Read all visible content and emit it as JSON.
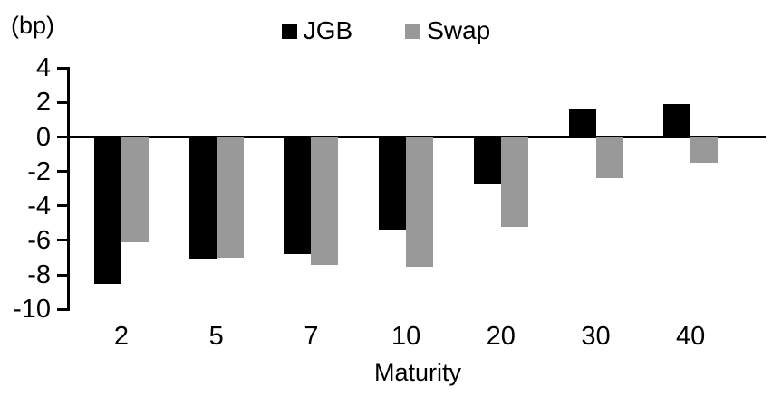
{
  "chart_data": {
    "type": "bar",
    "title": "",
    "unit_label": "(bp)",
    "xlabel": "Maturity",
    "ylabel": "",
    "categories": [
      "2",
      "5",
      "7",
      "10",
      "20",
      "30",
      "40"
    ],
    "series": [
      {
        "name": "JGB",
        "color": "#000000",
        "values": [
          -8.5,
          -7.1,
          -6.8,
          -5.4,
          -2.7,
          1.6,
          1.9
        ]
      },
      {
        "name": "Swap",
        "color": "#999999",
        "values": [
          -6.1,
          -7.0,
          -7.4,
          -7.5,
          -5.2,
          -2.4,
          -1.5
        ]
      }
    ],
    "y_ticks": [
      4,
      2,
      0,
      -2,
      -4,
      -6,
      -8,
      -10
    ],
    "ylim": [
      -10,
      4
    ],
    "legend_position": "top-center",
    "grid": false,
    "axis_color": "#000000"
  }
}
